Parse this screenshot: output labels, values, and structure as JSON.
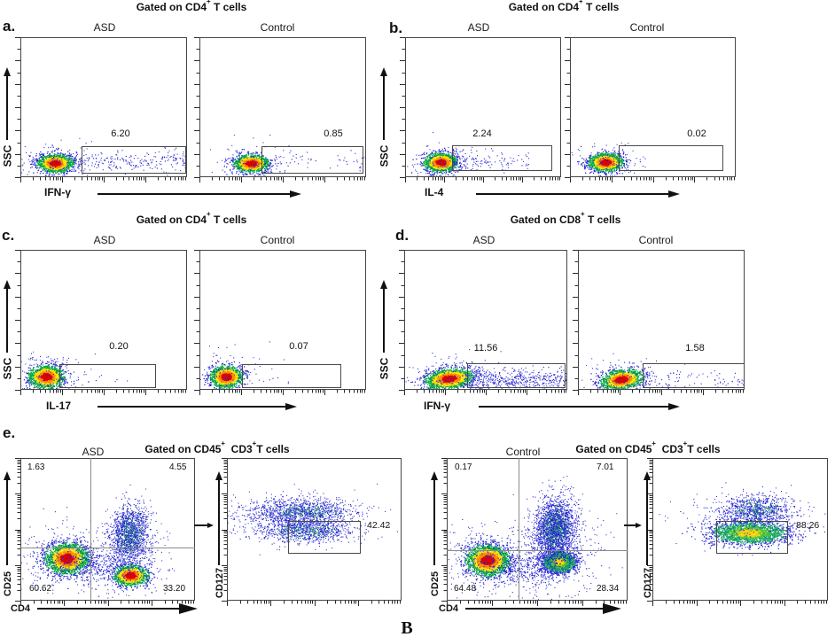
{
  "chart_data": {
    "type": "scatter",
    "description": "Flow cytometry pseudocolor dot plots comparing ASD vs Control: cytokine-positive gates on CD4+/CD8+ T cells (panels a-d) and Treg gating CD25/CD4 with CD127 (panel e).",
    "figure_label": "B",
    "panels": [
      {
        "letter": "a.",
        "title": "Gated on CD4^+ T cells",
        "x_axis": "IFN-γ",
        "y_axis": "SSC",
        "plots": [
          {
            "condition": "ASD",
            "gate_label": "6.20"
          },
          {
            "condition": "Control",
            "gate_label": "0.85"
          }
        ]
      },
      {
        "letter": "b.",
        "title": "Gated on CD4^+ T cells",
        "x_axis": "IL-4",
        "y_axis": "SSC",
        "plots": [
          {
            "condition": "ASD",
            "gate_label": "2.24"
          },
          {
            "condition": "Control",
            "gate_label": "0.02"
          }
        ]
      },
      {
        "letter": "c.",
        "title": "Gated on CD4^+ T cells",
        "x_axis": "IL-17",
        "y_axis": "SSC",
        "plots": [
          {
            "condition": "ASD",
            "gate_label": "0.20"
          },
          {
            "condition": "Control",
            "gate_label": "0.07"
          }
        ]
      },
      {
        "letter": "d.",
        "title": "Gated on CD8^+ T cells",
        "x_axis": "IFN-γ",
        "y_axis": "SSC",
        "plots": [
          {
            "condition": "ASD",
            "gate_label": "11.56"
          },
          {
            "condition": "Control",
            "gate_label": "1.58"
          }
        ]
      }
    ],
    "panel_e": {
      "letter": "e.",
      "groups": [
        {
          "condition": "ASD",
          "title": "Gated on CD45^+  CD3^+T cells",
          "quadrant": {
            "x_axis": "CD4",
            "y_axis": "CD25",
            "top_left": "1.63",
            "top_right": "4.55",
            "bottom_left": "60.62",
            "bottom_right": "33.20"
          },
          "cd127": {
            "y_axis": "CD127",
            "gate_label": "42.42"
          }
        },
        {
          "condition": "Control",
          "title": "Gated on CD45^+  CD3^+T cells",
          "quadrant": {
            "x_axis": "CD4",
            "y_axis": "CD25",
            "top_left": "0.17",
            "top_right": "7.01",
            "bottom_left": "64.48",
            "bottom_right": "28.34"
          },
          "cd127": {
            "y_axis": "CD127",
            "gate_label": "88.26"
          }
        }
      ]
    },
    "colors": {
      "dot_blue": "#2222cc",
      "dot_green": "#00ac3a",
      "dot_yellow": "#ffe000",
      "dot_orange": "#ff8c00",
      "dot_red": "#e00000",
      "box_border": "#454545"
    },
    "render": {
      "aASD": {
        "clusters": [
          {
            "fx": 0.207,
            "fy": 0.899,
            "sx": 0.048,
            "sy": 0.03,
            "n": 1600,
            "pal": "jet",
            "jit": 0.15
          },
          {
            "fx": 0.207,
            "fy": 0.899,
            "sx": 0.11,
            "sy": 0.075,
            "n": 160,
            "pal": "blue"
          }
        ],
        "bands": [
          {
            "x0": 0.33,
            "x1": 1.0,
            "cy": 0.886,
            "sy": 0.04,
            "n": 230,
            "exp": 1.0
          }
        ]
      },
      "aCtrl": {
        "clusters": [
          {
            "fx": 0.309,
            "fy": 0.899,
            "sx": 0.048,
            "sy": 0.03,
            "n": 1500,
            "pal": "jet",
            "jit": 0.15
          },
          {
            "fx": 0.309,
            "fy": 0.899,
            "sx": 0.105,
            "sy": 0.072,
            "n": 150,
            "pal": "blue"
          }
        ],
        "bands": [
          {
            "x0": 0.37,
            "x1": 0.99,
            "cy": 0.886,
            "sy": 0.038,
            "n": 55,
            "exp": 1.1
          }
        ]
      },
      "bASD": {
        "clusters": [
          {
            "fx": 0.227,
            "fy": 0.892,
            "sx": 0.05,
            "sy": 0.032,
            "n": 1550,
            "pal": "jet",
            "jit": 0.15
          },
          {
            "fx": 0.227,
            "fy": 0.892,
            "sx": 0.11,
            "sy": 0.075,
            "n": 150,
            "pal": "blue"
          }
        ],
        "bands": [
          {
            "x0": 0.3,
            "x1": 0.8,
            "cy": 0.885,
            "sy": 0.04,
            "n": 130,
            "exp": 1.6
          }
        ]
      },
      "bCtrl": {
        "clusters": [
          {
            "fx": 0.214,
            "fy": 0.892,
            "sx": 0.048,
            "sy": 0.031,
            "n": 1500,
            "pal": "jet",
            "jit": 0.15
          },
          {
            "fx": 0.214,
            "fy": 0.892,
            "sx": 0.105,
            "sy": 0.072,
            "n": 140,
            "pal": "blue"
          }
        ],
        "bands": [
          {
            "x0": 0.28,
            "x1": 0.5,
            "cy": 0.89,
            "sy": 0.03,
            "n": 12,
            "exp": 1.4
          }
        ]
      },
      "cASD": {
        "clusters": [
          {
            "fx": 0.154,
            "fy": 0.905,
            "sx": 0.049,
            "sy": 0.039,
            "n": 1700,
            "pal": "jet",
            "jit": 0.15
          },
          {
            "fx": 0.154,
            "fy": 0.905,
            "sx": 0.12,
            "sy": 0.1,
            "n": 200,
            "pal": "blue"
          }
        ],
        "bands": [
          {
            "x0": 0.22,
            "x1": 0.65,
            "cy": 0.91,
            "sy": 0.035,
            "n": 20,
            "exp": 1.6
          }
        ]
      },
      "cCtrl": {
        "clusters": [
          {
            "fx": 0.16,
            "fy": 0.905,
            "sx": 0.046,
            "sy": 0.037,
            "n": 1650,
            "pal": "jet",
            "jit": 0.15
          },
          {
            "fx": 0.16,
            "fy": 0.905,
            "sx": 0.11,
            "sy": 0.092,
            "n": 170,
            "pal": "blue"
          }
        ],
        "bands": [
          {
            "x0": 0.26,
            "x1": 0.55,
            "cy": 0.91,
            "sy": 0.03,
            "n": 8,
            "exp": 1.4
          }
        ]
      },
      "dASD": {
        "clusters": [
          {
            "fx": 0.272,
            "fy": 0.918,
            "sx": 0.068,
            "sy": 0.034,
            "n": 1900,
            "pal": "jet",
            "jit": 0.15,
            "rot": -0.12
          },
          {
            "fx": 0.272,
            "fy": 0.918,
            "sx": 0.15,
            "sy": 0.08,
            "n": 220,
            "pal": "blue"
          }
        ],
        "bands": [
          {
            "x0": 0.36,
            "x1": 1.0,
            "cy": 0.925,
            "sy": 0.038,
            "n": 480,
            "exp": 0.9
          }
        ]
      },
      "dCtrl": {
        "clusters": [
          {
            "fx": 0.26,
            "fy": 0.924,
            "sx": 0.058,
            "sy": 0.033,
            "n": 1600,
            "pal": "jet",
            "jit": 0.15,
            "rot": -0.15
          },
          {
            "fx": 0.26,
            "fy": 0.924,
            "sx": 0.13,
            "sy": 0.075,
            "n": 170,
            "pal": "blue"
          }
        ],
        "bands": [
          {
            "x0": 0.39,
            "x1": 1.0,
            "cy": 0.93,
            "sy": 0.035,
            "n": 85,
            "exp": 1.05
          }
        ]
      },
      "eQA": {
        "clusters": [
          {
            "fx": 0.264,
            "fy": 0.702,
            "sx": 0.056,
            "sy": 0.05,
            "n": 2600,
            "pal": "jet",
            "jit": 0.15
          },
          {
            "fx": 0.264,
            "fy": 0.702,
            "sx": 0.13,
            "sy": 0.12,
            "n": 420,
            "pal": "blue"
          },
          {
            "fx": 0.629,
            "fy": 0.82,
            "sx": 0.046,
            "sy": 0.034,
            "n": 1500,
            "pal": "jet",
            "jit": 0.15
          },
          {
            "fx": 0.624,
            "fy": 0.53,
            "sx": 0.052,
            "sy": 0.105,
            "n": 1500,
            "pal": "bg",
            "jit": 0.5,
            "rot": 0.18
          },
          {
            "fx": 0.63,
            "fy": 0.7,
            "sx": 0.11,
            "sy": 0.14,
            "n": 350,
            "pal": "blue"
          },
          {
            "fx": 0.44,
            "fy": 0.76,
            "sx": 0.09,
            "sy": 0.055,
            "n": 220,
            "pal": "blue"
          }
        ],
        "bands": []
      },
      "e127A": {
        "clusters": [
          {
            "fx": 0.426,
            "fy": 0.373,
            "sx": 0.142,
            "sy": 0.046,
            "n": 1100,
            "pal": "bg",
            "jit": 0.5
          },
          {
            "fx": 0.457,
            "fy": 0.51,
            "sx": 0.127,
            "sy": 0.04,
            "n": 900,
            "pal": "bg",
            "jit": 0.5
          },
          {
            "fx": 0.23,
            "fy": 0.42,
            "sx": 0.14,
            "sy": 0.07,
            "n": 200,
            "pal": "blue"
          },
          {
            "fx": 0.43,
            "fy": 0.44,
            "sx": 0.22,
            "sy": 0.1,
            "n": 160,
            "pal": "blue"
          }
        ],
        "bands": []
      },
      "eQC": {
        "clusters": [
          {
            "fx": 0.225,
            "fy": 0.714,
            "sx": 0.055,
            "sy": 0.05,
            "n": 2600,
            "pal": "jet",
            "jit": 0.15
          },
          {
            "fx": 0.225,
            "fy": 0.714,
            "sx": 0.13,
            "sy": 0.12,
            "n": 420,
            "pal": "blue"
          },
          {
            "fx": 0.618,
            "fy": 0.727,
            "sx": 0.048,
            "sy": 0.038,
            "n": 1700,
            "pal": "jetg",
            "jit": 0.15
          },
          {
            "fx": 0.596,
            "fy": 0.5,
            "sx": 0.055,
            "sy": 0.115,
            "n": 2400,
            "pal": "bg",
            "jit": 0.5,
            "rot": 0.15
          },
          {
            "fx": 0.61,
            "fy": 0.66,
            "sx": 0.12,
            "sy": 0.15,
            "n": 400,
            "pal": "blue"
          },
          {
            "fx": 0.42,
            "fy": 0.79,
            "sx": 0.085,
            "sy": 0.05,
            "n": 240,
            "pal": "blue"
          }
        ],
        "bands": []
      },
      "e127C": {
        "clusters": [
          {
            "fx": 0.551,
            "fy": 0.522,
            "sx": 0.111,
            "sy": 0.04,
            "n": 2000,
            "pal": "jetg",
            "jit": 0.25
          },
          {
            "fx": 0.591,
            "fy": 0.36,
            "sx": 0.101,
            "sy": 0.052,
            "n": 900,
            "pal": "bg",
            "jit": 0.5
          },
          {
            "fx": 0.55,
            "fy": 0.46,
            "sx": 0.18,
            "sy": 0.09,
            "n": 180,
            "pal": "blue"
          },
          {
            "fx": 0.3,
            "fy": 0.4,
            "sx": 0.12,
            "sy": 0.06,
            "n": 40,
            "pal": "blue"
          }
        ],
        "bands": []
      }
    }
  }
}
